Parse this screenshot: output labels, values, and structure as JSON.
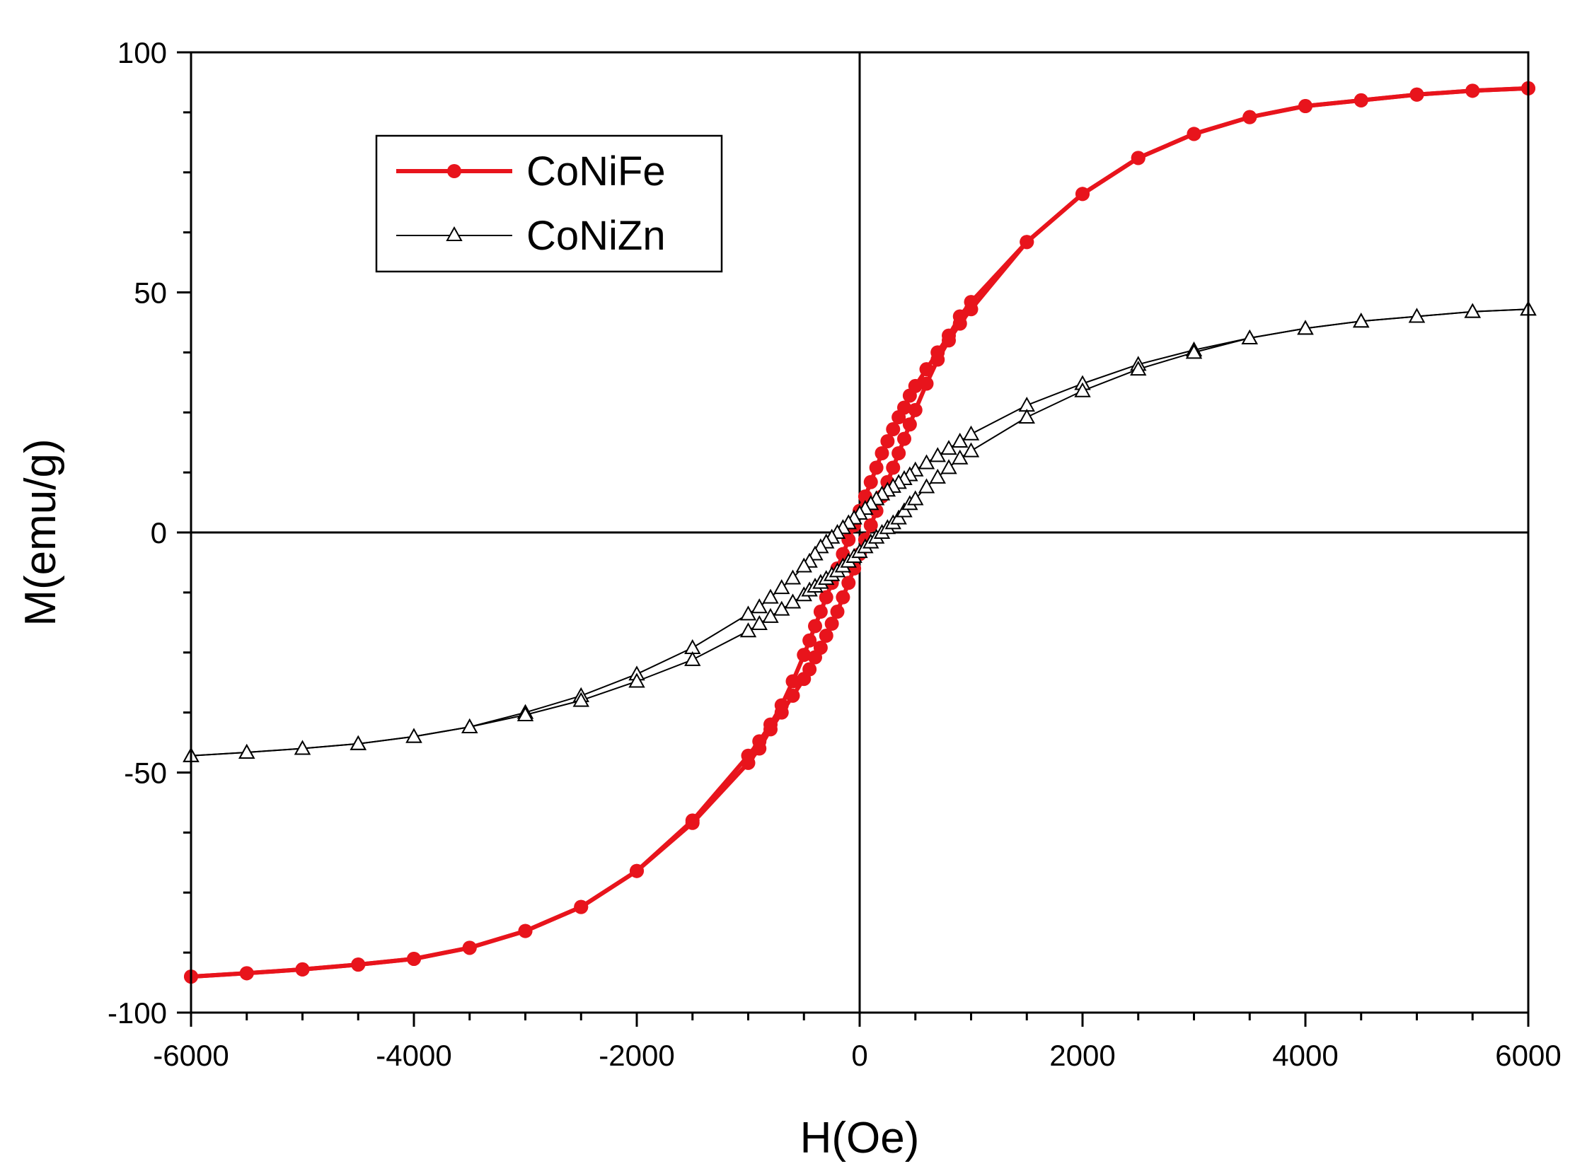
{
  "chart_data": {
    "type": "line",
    "title": "",
    "xlabel": "H(Oe)",
    "ylabel": "M(emu/g)",
    "xlim": [
      -6000,
      6000
    ],
    "ylim": [
      -100,
      100
    ],
    "x_ticks": [
      -6000,
      -4000,
      -2000,
      0,
      2000,
      4000,
      6000
    ],
    "y_ticks": [
      -100,
      -50,
      0,
      50,
      100
    ],
    "x_tick_labels": [
      "-6000",
      "-4000",
      "-2000",
      "0",
      "2000",
      "4000",
      "6000"
    ],
    "y_tick_labels": [
      "-100",
      "-50",
      "0",
      "50",
      "100"
    ],
    "grid": false,
    "zero_lines": true,
    "legend_position": "top-left",
    "series": [
      {
        "name": "CoNiFe",
        "color": "#e8141c",
        "marker": "filled-circle",
        "branches": [
          {
            "x": [
              6000,
              5500,
              5000,
              4500,
              4000,
              3500,
              3000,
              2500,
              2000,
              1500,
              1000,
              900,
              800,
              700,
              600,
              500,
              450,
              400,
              350,
              300,
              250,
              200,
              150,
              100,
              50,
              0,
              -50,
              -100,
              -150,
              -200,
              -250,
              -300,
              -350,
              -400,
              -450,
              -500,
              -600,
              -700,
              -800,
              -900,
              -1000,
              -1500,
              -2000,
              -2500,
              -3000,
              -3500,
              -4000,
              -4500,
              -5000,
              -5500,
              -6000
            ],
            "y": [
              92.5,
              92,
              91.2,
              90,
              88.8,
              86.5,
              83,
              78,
              70.5,
              60.5,
              48,
              45,
              41,
              37.5,
              34,
              30.5,
              28.5,
              26,
              24,
              21.5,
              19,
              16.5,
              13.5,
              10.5,
              7.5,
              4.5,
              1.5,
              -1.5,
              -4.5,
              -7.5,
              -10.5,
              -13.5,
              -16.5,
              -19.5,
              -22.5,
              -25.5,
              -31,
              -36,
              -40,
              -43.5,
              -46.5,
              -60,
              -70.5,
              -78,
              -83,
              -86.5,
              -88.8,
              -90,
              -91,
              -91.8,
              -92.5
            ]
          },
          {
            "x": [
              -6000,
              -5500,
              -5000,
              -4500,
              -4000,
              -3500,
              -3000,
              -2500,
              -2000,
              -1500,
              -1000,
              -900,
              -800,
              -700,
              -600,
              -500,
              -450,
              -400,
              -350,
              -300,
              -250,
              -200,
              -150,
              -100,
              -50,
              0,
              50,
              100,
              150,
              200,
              250,
              300,
              350,
              400,
              450,
              500,
              600,
              700,
              800,
              900,
              1000,
              1500,
              2000,
              2500,
              3000,
              3500,
              4000,
              4500,
              5000,
              5500,
              6000
            ],
            "y": [
              -92.5,
              -91.8,
              -91,
              -90,
              -88.8,
              -86.5,
              -83,
              -78,
              -70.5,
              -60.5,
              -48,
              -45,
              -41,
              -37.5,
              -34,
              -30.5,
              -28.5,
              -26,
              -24,
              -21.5,
              -19,
              -16.5,
              -13.5,
              -10.5,
              -7.5,
              -4.5,
              -1.5,
              1.5,
              4.5,
              7.5,
              10.5,
              13.5,
              16.5,
              19.5,
              22.5,
              25.5,
              31,
              36,
              40,
              43.5,
              46.5,
              60.5,
              70.5,
              78,
              83,
              86.5,
              88.8,
              90,
              91.2,
              92,
              92.5
            ]
          }
        ]
      },
      {
        "name": "CoNiZn",
        "color": "#000000",
        "marker": "open-triangle",
        "branches": [
          {
            "x": [
              6000,
              5500,
              5000,
              4500,
              4000,
              3500,
              3000,
              2500,
              2000,
              1500,
              1000,
              900,
              800,
              700,
              600,
              500,
              450,
              400,
              350,
              300,
              250,
              200,
              150,
              100,
              50,
              0,
              -50,
              -100,
              -150,
              -200,
              -250,
              -300,
              -350,
              -400,
              -450,
              -500,
              -600,
              -700,
              -800,
              -900,
              -1000,
              -1500,
              -2000,
              -2500,
              -3000,
              -3500,
              -4000,
              -4500,
              -5000,
              -5500,
              -6000
            ],
            "y": [
              46.5,
              46,
              45,
              44,
              42.5,
              40.5,
              38,
              35,
              31,
              26.5,
              20.5,
              19,
              17.5,
              16,
              14.5,
              13,
              12,
              11.2,
              10.4,
              9.6,
              8.8,
              8,
              7,
              6,
              5,
              4,
              3,
              2,
              1,
              0,
              -1,
              -2,
              -3,
              -4.5,
              -6,
              -7,
              -9.5,
              -11.5,
              -13.5,
              -15.5,
              -17,
              -24,
              -29.5,
              -34,
              -37.5,
              -40.5,
              -42.5,
              -44,
              -45,
              -45.8,
              -46.5
            ]
          },
          {
            "x": [
              -6000,
              -5500,
              -5000,
              -4500,
              -4000,
              -3500,
              -3000,
              -2500,
              -2000,
              -1500,
              -1000,
              -900,
              -800,
              -700,
              -600,
              -500,
              -450,
              -400,
              -350,
              -300,
              -250,
              -200,
              -150,
              -100,
              -50,
              0,
              50,
              100,
              150,
              200,
              250,
              300,
              350,
              400,
              450,
              500,
              600,
              700,
              800,
              900,
              1000,
              1500,
              2000,
              2500,
              3000,
              3500,
              4000,
              4500,
              5000,
              5500,
              6000
            ],
            "y": [
              -46.5,
              -45.8,
              -45,
              -44,
              -42.5,
              -40.5,
              -38,
              -35,
              -31,
              -26.5,
              -20.5,
              -19,
              -17.5,
              -16,
              -14.5,
              -13,
              -12,
              -11.2,
              -10.4,
              -9.6,
              -8.8,
              -8,
              -7,
              -6,
              -5,
              -4,
              -3,
              -2,
              -1,
              0,
              1,
              2,
              3,
              4.5,
              6,
              7,
              9.5,
              11.5,
              13.5,
              15.5,
              17,
              24,
              29.5,
              34,
              37.5,
              40.5,
              42.5,
              44,
              45,
              46,
              46.5
            ]
          }
        ]
      }
    ]
  }
}
